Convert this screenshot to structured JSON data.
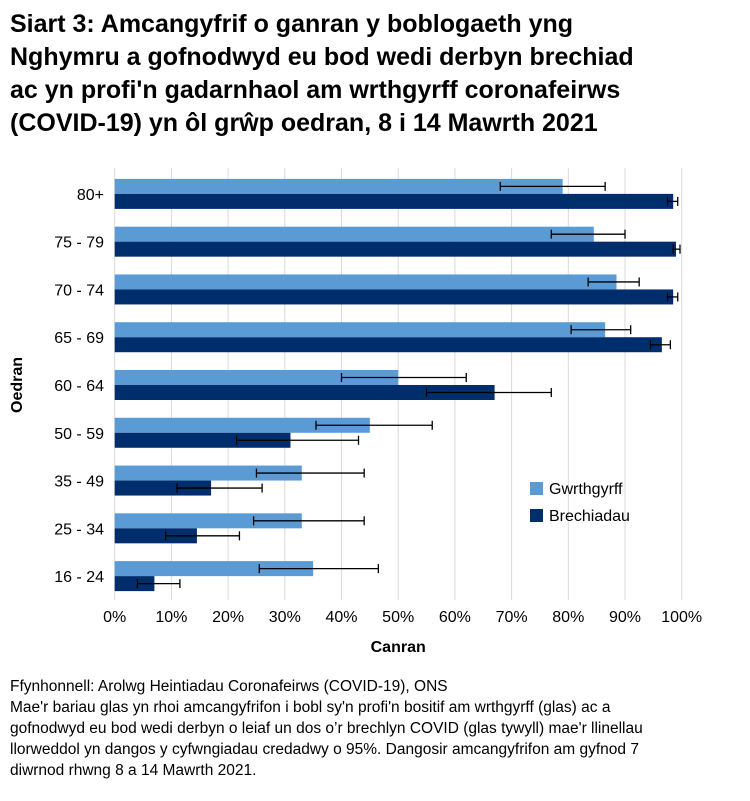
{
  "title": {
    "lines": [
      "Siart 3: Amcangyfrif o ganran y boblogaeth yng",
      "Nghymru a gofnodwyd eu bod wedi derbyn brechiad",
      "ac yn profi'n gadarnhaol am wrthgyrff coronafeirws",
      "(COVID-19) yn ôl grŵp oedran, 8 i 14 Mawrth 2021"
    ]
  },
  "footer": {
    "source": "Ffynhonnell: Arolwg Heintiadau Coronafeirws (COVID-19), ONS",
    "note_lines": [
      "Mae'r bariau glas yn rhoi amcangyfrifon i bobl sy'n profi'n bositif am wrthgyrff (glas) ac a",
      "gofnodwyd eu bod wedi derbyn o leiaf un dos o’r brechlyn COVID (glas tywyll) mae'r llinellau",
      "llorweddol yn dangos y cyfwngiadau credadwy o 95%. Dangosir amcangyfrifon am gyfnod 7",
      "diwrnod rhwng 8 a 14 Mawrth 2021."
    ]
  },
  "colors": {
    "antibodies": "#5B9BD5",
    "vaccinations": "#002D6B",
    "gridline": "#D9D9D9",
    "error_bar": "#000000",
    "text": "#000000"
  },
  "chart_data": {
    "type": "bar",
    "orientation": "horizontal",
    "title": "",
    "xlabel": "Canran",
    "ylabel": "Oedran",
    "xlim": [
      0,
      100
    ],
    "x_ticks": [
      "0%",
      "10%",
      "20%",
      "30%",
      "40%",
      "50%",
      "60%",
      "70%",
      "80%",
      "90%",
      "100%"
    ],
    "grid": true,
    "legend_position": "right-middle",
    "error_bars": "95% credible intervals",
    "categories": [
      "80+",
      "75 - 79",
      "70 - 74",
      "65 - 69",
      "60 - 64",
      "50 - 59",
      "35 - 49",
      "25 - 34",
      "16 - 24"
    ],
    "series": [
      {
        "name": "Gwrthgyrff",
        "color": "#5B9BD5",
        "values": [
          79,
          84.5,
          88.5,
          86.5,
          50,
          45,
          33,
          33,
          35
        ],
        "ci_low": [
          68,
          77,
          83.5,
          80.5,
          40,
          35.5,
          25,
          24.5,
          25.5
        ],
        "ci_high": [
          86.5,
          90,
          92.5,
          91,
          62,
          56,
          44,
          44,
          46.5
        ]
      },
      {
        "name": "Brechiadau",
        "color": "#002D6B",
        "values": [
          98.5,
          99,
          98.5,
          96.5,
          67,
          31,
          17,
          14.5,
          7
        ],
        "ci_low": [
          97.5,
          98.5,
          97.5,
          94.5,
          55,
          21.5,
          11,
          9,
          4
        ],
        "ci_high": [
          99.3,
          99.7,
          99.3,
          98,
          77,
          43,
          26,
          22,
          11.5
        ]
      }
    ]
  }
}
